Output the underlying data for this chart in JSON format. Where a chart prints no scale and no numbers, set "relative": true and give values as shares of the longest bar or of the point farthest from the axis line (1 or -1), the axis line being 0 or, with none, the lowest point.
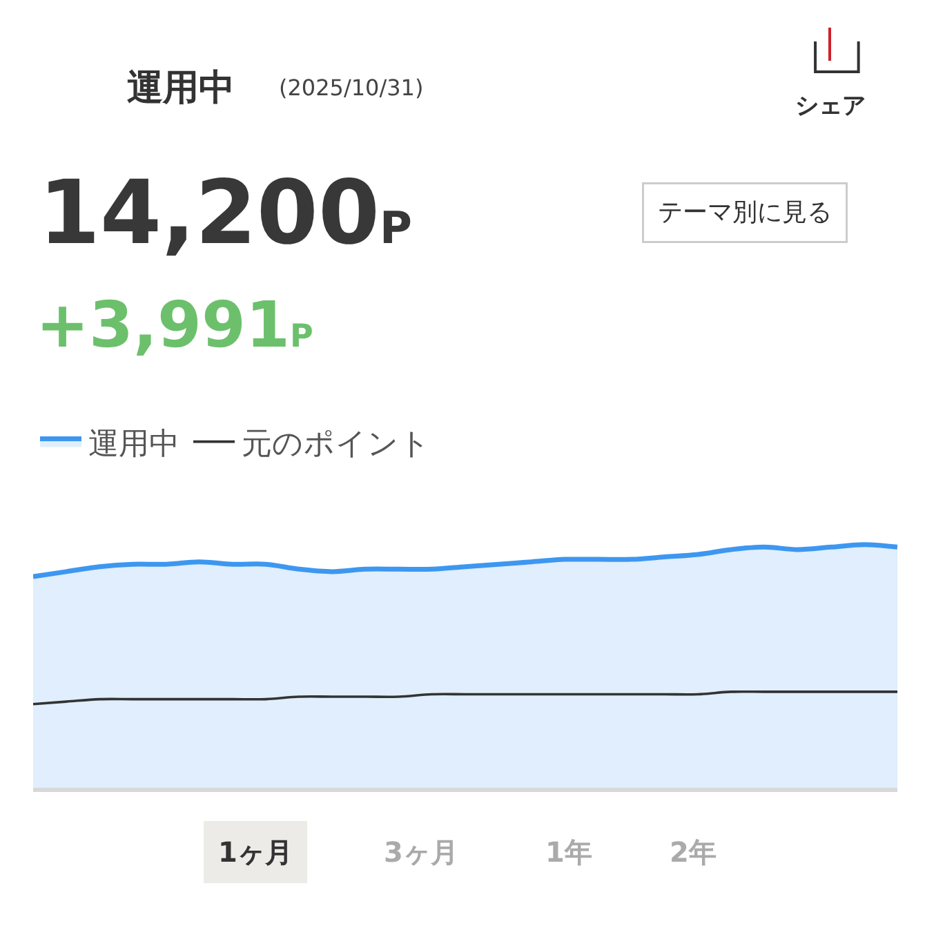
{
  "chart_data": {
    "type": "line",
    "title": "運用中",
    "subtitle": "(2025/10/31)",
    "relative": true,
    "legend": "top left",
    "categories": [
      null,
      null,
      null,
      null,
      null,
      null,
      null,
      null,
      null,
      null,
      null,
      null,
      null,
      null,
      null,
      null,
      null,
      null,
      null,
      null,
      null,
      null,
      null,
      null,
      null,
      null,
      null
    ],
    "series": [
      {
        "name": "運用中",
        "type": "area",
        "color": "#3d97f0",
        "values": [
          0.87,
          0.89,
          0.91,
          0.92,
          0.92,
          0.93,
          0.92,
          0.92,
          0.9,
          0.89,
          0.9,
          0.9,
          0.9,
          0.91,
          0.92,
          0.93,
          0.94,
          0.94,
          0.94,
          0.95,
          0.96,
          0.98,
          0.99,
          0.98,
          0.99,
          1.0,
          0.99
        ]
      },
      {
        "name": "元のポイント",
        "color": "#333333",
        "values": [
          0.35,
          0.36,
          0.37,
          0.37,
          0.37,
          0.37,
          0.37,
          0.37,
          0.38,
          0.38,
          0.38,
          0.38,
          0.39,
          0.39,
          0.39,
          0.39,
          0.39,
          0.39,
          0.39,
          0.39,
          0.39,
          0.4,
          0.4,
          0.4,
          0.4,
          0.4,
          0.4
        ]
      }
    ],
    "annotations": [
      "14,200P",
      "+3,991P",
      "シェア",
      "テーマ別に見る",
      "1ヶ月",
      "3ヶ月",
      "1年",
      "2年"
    ]
  }
}
